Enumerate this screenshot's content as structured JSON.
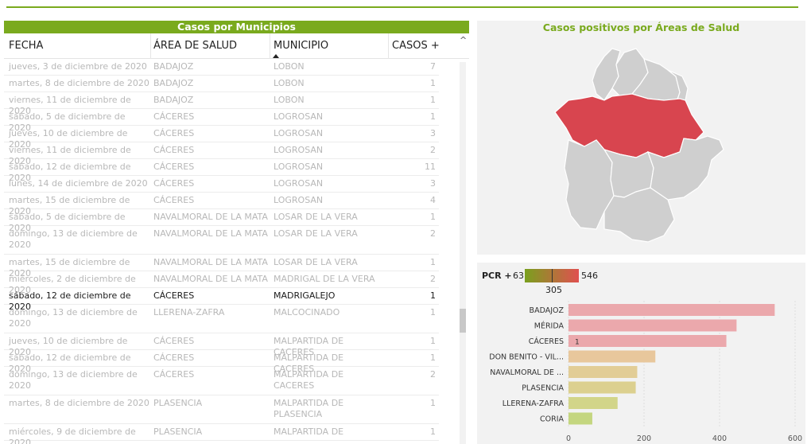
{
  "table": {
    "title": "Casos por Municipios",
    "columns": [
      "FECHA",
      "ÁREA DE SALUD",
      "MUNICIPIO",
      "CASOS +"
    ],
    "rows": [
      {
        "fecha": "jueves, 3 de diciembre de 2020",
        "area": "BADAJOZ",
        "municipio": "LOBON",
        "casos": "7"
      },
      {
        "fecha": "martes, 8 de diciembre de 2020",
        "area": "BADAJOZ",
        "municipio": "LOBON",
        "casos": "1"
      },
      {
        "fecha": "viernes, 11 de diciembre de 2020",
        "area": "BADAJOZ",
        "municipio": "LOBON",
        "casos": "1"
      },
      {
        "fecha": "sábado, 5 de diciembre de 2020",
        "area": "CÁCERES",
        "municipio": "LOGROSAN",
        "casos": "1"
      },
      {
        "fecha": "jueves, 10 de diciembre de 2020",
        "area": "CÁCERES",
        "municipio": "LOGROSAN",
        "casos": "3"
      },
      {
        "fecha": "viernes, 11 de diciembre de 2020",
        "area": "CÁCERES",
        "municipio": "LOGROSAN",
        "casos": "2"
      },
      {
        "fecha": "sábado, 12 de diciembre de 2020",
        "area": "CÁCERES",
        "municipio": "LOGROSAN",
        "casos": "11"
      },
      {
        "fecha": "lunes, 14 de diciembre de 2020",
        "area": "CÁCERES",
        "municipio": "LOGROSAN",
        "casos": "3"
      },
      {
        "fecha": "martes, 15 de diciembre de 2020",
        "area": "CÁCERES",
        "municipio": "LOGROSAN",
        "casos": "4"
      },
      {
        "fecha": "sábado, 5 de diciembre de 2020",
        "area": "NAVALMORAL DE LA MATA",
        "municipio": "LOSAR DE LA VERA",
        "casos": "1"
      },
      {
        "fecha": "domingo, 13 de diciembre de 2020",
        "area": "NAVALMORAL DE LA MATA",
        "municipio": "LOSAR DE LA VERA",
        "casos": "2",
        "tall": true
      },
      {
        "fecha": "martes, 15 de diciembre de 2020",
        "area": "NAVALMORAL DE LA MATA",
        "municipio": "LOSAR DE LA VERA",
        "casos": "1"
      },
      {
        "fecha": "miércoles, 2 de diciembre de 2020",
        "area": "NAVALMORAL DE LA MATA",
        "municipio": "MADRIGAL DE LA VERA",
        "casos": "2"
      },
      {
        "fecha": "sábado, 12 de diciembre de 2020",
        "area": "CÁCERES",
        "municipio": "MADRIGALEJO",
        "casos": "1",
        "selected": true
      },
      {
        "fecha": "domingo, 13 de diciembre de 2020",
        "area": "LLERENA-ZAFRA",
        "municipio": "MALCOCINADO",
        "casos": "1",
        "tall": true
      },
      {
        "fecha": "jueves, 10 de diciembre de 2020",
        "area": "CÁCERES",
        "municipio": "MALPARTIDA DE CACERES",
        "casos": "1"
      },
      {
        "fecha": "sábado, 12 de diciembre de 2020",
        "area": "CÁCERES",
        "municipio": "MALPARTIDA DE CACERES",
        "casos": "1"
      },
      {
        "fecha": "domingo, 13 de diciembre de 2020",
        "area": "CÁCERES",
        "municipio": "MALPARTIDA DE CACERES",
        "casos": "2",
        "tall": true
      },
      {
        "fecha": "martes, 8 de diciembre de 2020",
        "area": "PLASENCIA",
        "municipio": "MALPARTIDA DE PLASENCIA",
        "casos": "1",
        "tall": true
      },
      {
        "fecha": "miércoles, 9 de diciembre de 2020",
        "area": "PLASENCIA",
        "municipio": "MALPARTIDA DE",
        "casos": "1"
      }
    ]
  },
  "map": {
    "title": "Casos positivos por Áreas de Salud",
    "highlight_color": "#d8454f",
    "region_color": "#cfcfcf"
  },
  "legend": {
    "label": "PCR +",
    "min": "63",
    "mid": "305",
    "max": "546"
  },
  "chart_data": {
    "type": "bar",
    "orientation": "horizontal",
    "categories": [
      "BADAJOZ",
      "MÉRIDA",
      "CÁCERES",
      "DON BENITO - VIL...",
      "NAVALMORAL DE ...",
      "PLASENCIA",
      "LLERENA-ZAFRA",
      "CORIA"
    ],
    "values": [
      546,
      445,
      418,
      230,
      182,
      178,
      130,
      63
    ],
    "colors": [
      "#eba8ac",
      "#eba8ac",
      "#eba8ac",
      "#e8c79c",
      "#e2cd96",
      "#dcd08f",
      "#d2d589",
      "#c4d67f"
    ],
    "xlim": [
      0,
      600
    ],
    "xticks": [
      "0",
      "200",
      "400",
      "600"
    ],
    "annotation": {
      "category": "CÁCERES",
      "text": "1"
    }
  }
}
